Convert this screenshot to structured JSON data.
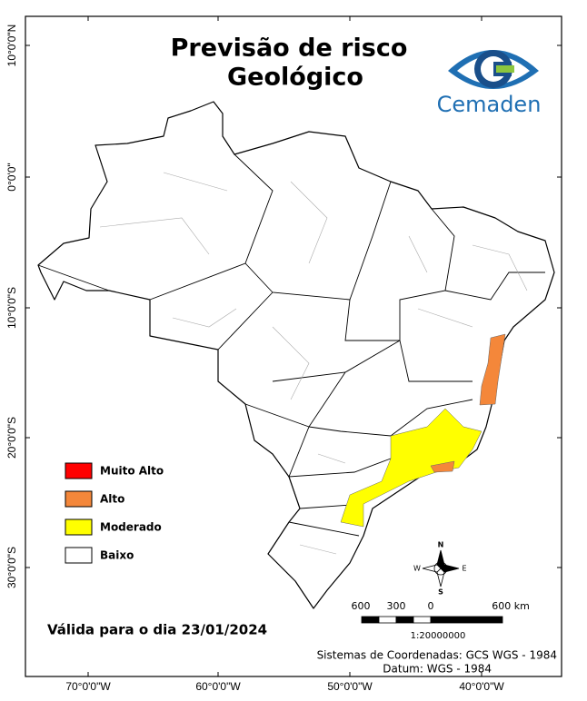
{
  "title": [
    "Previsão de risco",
    "Geológico"
  ],
  "logo": "Cemaden",
  "legend": [
    {
      "label": "Muito Alto",
      "color": "#ff0000"
    },
    {
      "label": "Alto",
      "color": "#f4873a"
    },
    {
      "label": "Moderado",
      "color": "#ffff00"
    },
    {
      "label": "Baixo",
      "color": "#ffffff"
    }
  ],
  "lat_labels": [
    "10°0'0\"N",
    "0°0'0\"",
    "10°0'0\"S",
    "20°0'0\"S",
    "30°0'0\"S"
  ],
  "lon_labels": [
    "70°0'0\"W",
    "60°0'0\"W",
    "50°0'0\"W",
    "40°0'0\"W"
  ],
  "scale": {
    "labels": [
      "600",
      "300",
      "0",
      "600 km"
    ],
    "ratio": "1:20000000"
  },
  "compass": {
    "n": "N",
    "s": "S",
    "e": "E",
    "w": "W"
  },
  "validity": "Válida para o dia 23/01/2024",
  "footer": [
    "Sistemas de Coordenadas: GCS WGS - 1984",
    "Datum: WGS - 1984"
  ]
}
